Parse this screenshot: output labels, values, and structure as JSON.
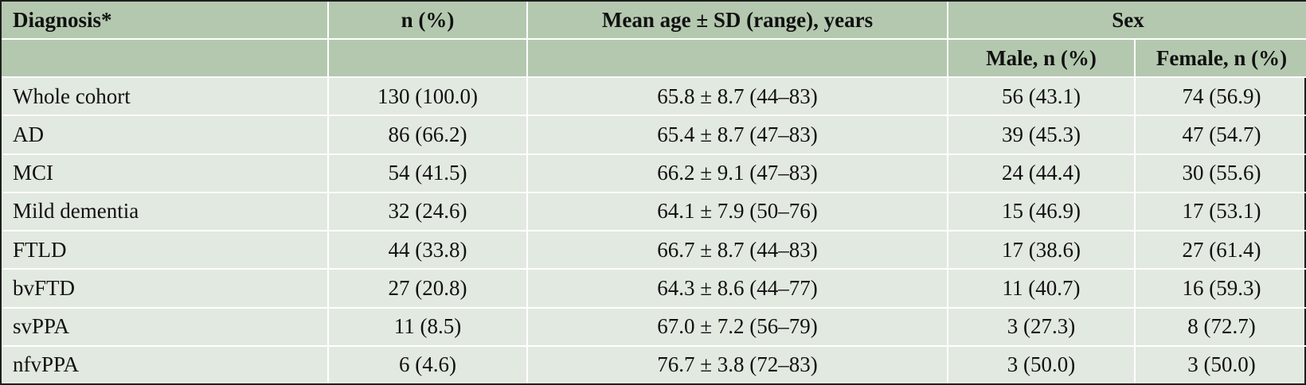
{
  "table": {
    "headers": {
      "diagnosis": "Diagnosis*",
      "n_pct": "n (%)",
      "mean_age": "Mean age ± SD (range), years",
      "sex": "Sex",
      "male": "Male, n (%)",
      "female": "Female, n (%)"
    },
    "rows": [
      {
        "diagnosis": "Whole cohort",
        "n": "130 (100.0)",
        "age": "65.8 ± 8.7 (44–83)",
        "male": "56 (43.1)",
        "female": "74 (56.9)"
      },
      {
        "diagnosis": "AD",
        "n": "86 (66.2)",
        "age": "65.4 ± 8.7 (47–83)",
        "male": "39 (45.3)",
        "female": "47 (54.7)"
      },
      {
        "diagnosis": "MCI",
        "n": "54 (41.5)",
        "age": "66.2 ± 9.1  (47–83)",
        "male": "24 (44.4)",
        "female": "30 (55.6)"
      },
      {
        "diagnosis": "Mild dementia",
        "n": "32 (24.6)",
        "age": "64.1 ± 7.9 (50–76)",
        "male": "15 (46.9)",
        "female": "17 (53.1)"
      },
      {
        "diagnosis": "FTLD",
        "n": "44 (33.8)",
        "age": "66.7 ± 8.7 (44–83)",
        "male": "17 (38.6)",
        "female": "27 (61.4)"
      },
      {
        "diagnosis": "bvFTD",
        "n": "27 (20.8)",
        "age": "64.3 ± 8.6 (44–77)",
        "male": "11 (40.7)",
        "female": "16 (59.3)"
      },
      {
        "diagnosis": "svPPA",
        "n": "11 (8.5)",
        "age": "67.0 ± 7.2 (56–79)",
        "male": "3 (27.3)",
        "female": "8 (72.7)"
      },
      {
        "diagnosis": "nfvPPA",
        "n": "6 (4.6)",
        "age": "76.7 ± 3.8 (72–83)",
        "male": "3 (50.0)",
        "female": "3 (50.0)"
      }
    ]
  }
}
